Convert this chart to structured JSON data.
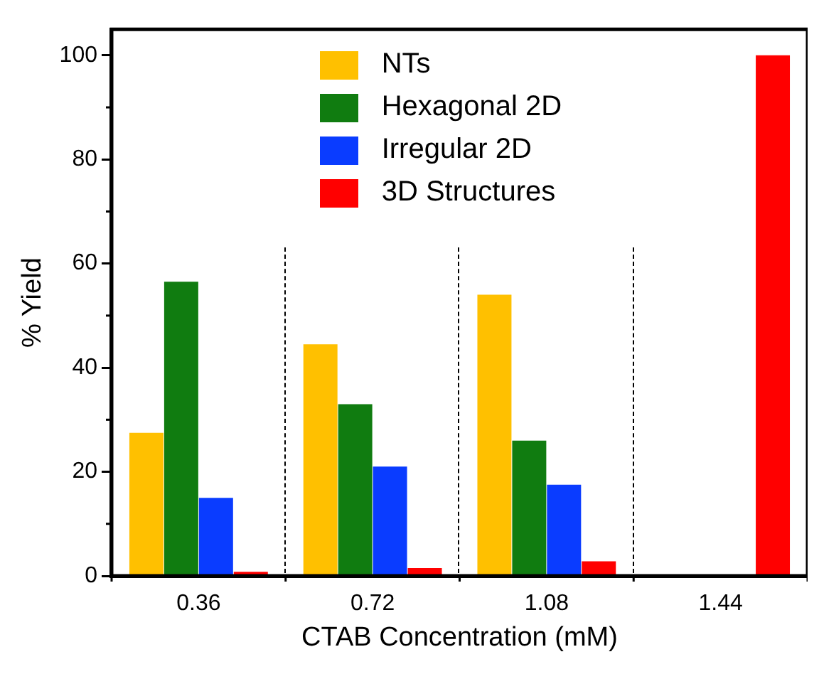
{
  "chart_data": {
    "type": "bar",
    "xlabel": "CTAB Concentration (mM)",
    "ylabel": "% Yield",
    "categories": [
      "0.36",
      "0.72",
      "1.08",
      "1.44"
    ],
    "series": [
      {
        "name": "NTs",
        "color": "#ffc000",
        "values": [
          27.5,
          44.5,
          54,
          0
        ]
      },
      {
        "name": "Hexagonal 2D",
        "color": "#107c10",
        "values": [
          56.5,
          33,
          26,
          0
        ]
      },
      {
        "name": "Irregular 2D",
        "color": "#0a3cff",
        "values": [
          15,
          21,
          17.5,
          0
        ]
      },
      {
        "name": "3D Structures",
        "color": "#ff0000",
        "values": [
          0.8,
          1.5,
          2.8,
          100
        ]
      }
    ],
    "ylim": [
      0,
      105
    ],
    "yticks": [
      0,
      20,
      40,
      60,
      80,
      100
    ],
    "grid": false,
    "legend": "top"
  }
}
